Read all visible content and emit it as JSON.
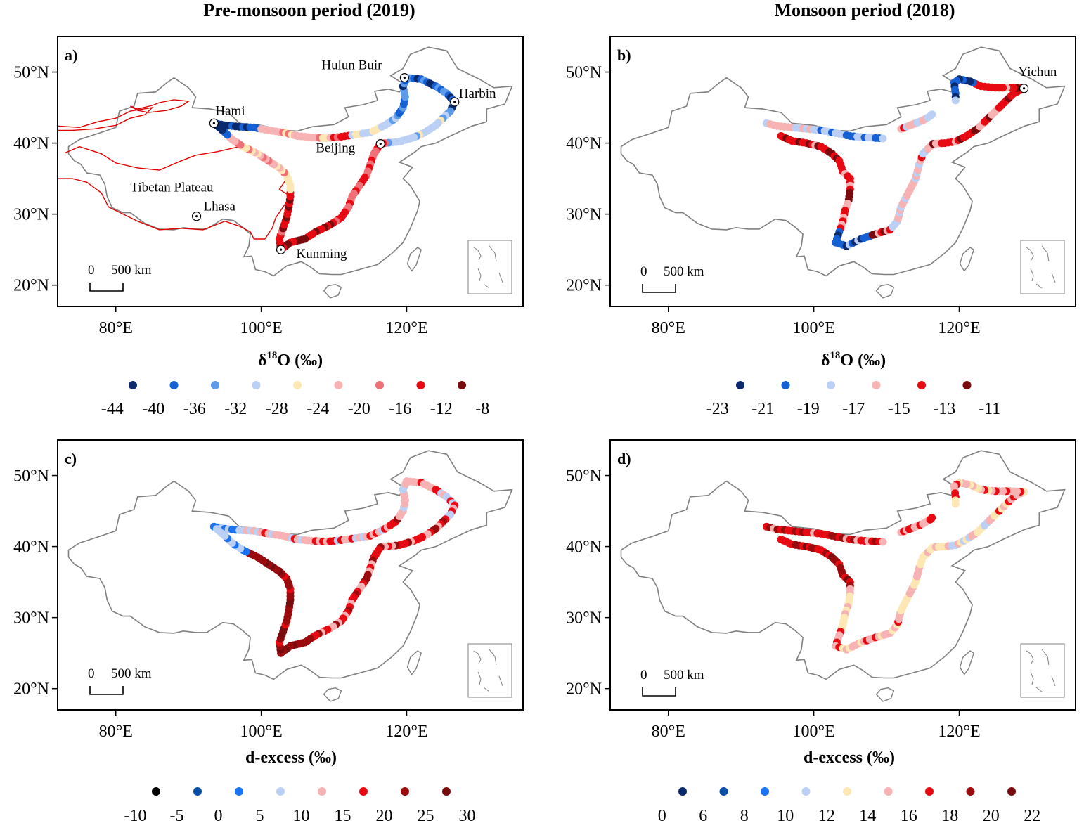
{
  "titles": {
    "left": "Pre-monsoon period (2019)",
    "right": "Monsoon period (2018)"
  },
  "axes": {
    "lat_labels": [
      "50°N",
      "40°N",
      "30°N",
      "20°N"
    ],
    "lat_values": [
      50,
      40,
      30,
      20
    ],
    "lon_labels": [
      "80°E",
      "100°E",
      "120°E"
    ],
    "lon_values": [
      80,
      100,
      120
    ],
    "lon_range": [
      72,
      136
    ],
    "lat_range": [
      17,
      55
    ]
  },
  "scale_bar": {
    "zero": "0",
    "distance": "500 km"
  },
  "panels": [
    {
      "letter": "a)",
      "variable": "δ18O",
      "locations": [
        {
          "name": "Hulun Buir",
          "lon": 119.7,
          "lat": 49.2
        },
        {
          "name": "Harbin",
          "lon": 126.6,
          "lat": 45.8
        },
        {
          "name": "Hami",
          "lon": 93.5,
          "lat": 42.8
        },
        {
          "name": "Beijing",
          "lon": 116.4,
          "lat": 39.9
        },
        {
          "name": "Lhasa",
          "lon": 91.1,
          "lat": 29.7
        },
        {
          "name": "Kunming",
          "lon": 102.7,
          "lat": 25.0
        }
      ],
      "region_label": "Tibetan Plateau"
    },
    {
      "letter": "b)",
      "variable": "δ18O",
      "locations": [
        {
          "name": "Yichun",
          "lon": 128.9,
          "lat": 47.7
        }
      ]
    },
    {
      "letter": "c)",
      "variable": "d-excess",
      "locations": []
    },
    {
      "letter": "d)",
      "variable": "d-excess",
      "locations": []
    }
  ],
  "legends": [
    {
      "id": "a",
      "title_main": "δ",
      "title_sup": "18",
      "title_rest": "O (‰)",
      "colors": [
        "#0b2a6e",
        "#1560d4",
        "#5e9cea",
        "#bcd0f5",
        "#fde7b4",
        "#f7b2b4",
        "#ef7076",
        "#e80a13",
        "#780b0e"
      ],
      "ticks": [
        "-44",
        "-40",
        "-36",
        "-32",
        "-28",
        "-24",
        "-20",
        "-16",
        "-12",
        "-8"
      ]
    },
    {
      "id": "b",
      "title_main": "δ",
      "title_sup": "18",
      "title_rest": "O (‰)",
      "colors": [
        "#0b2a6e",
        "#1560d4",
        "#bcd0f5",
        "#f7b2b4",
        "#e80a13",
        "#780b0e"
      ],
      "ticks": [
        "-23",
        "-21",
        "-19",
        "-17",
        "-15",
        "-13",
        "-11"
      ]
    },
    {
      "id": "c",
      "title_main": "d-excess (‰)",
      "colors": [
        "#000000",
        "#0b4ea6",
        "#1a73f0",
        "#bcd0f5",
        "#f7b2b4",
        "#e80a13",
        "#9a0b0e",
        "#780b0e"
      ],
      "ticks": [
        "-10",
        "-5",
        "0",
        "5",
        "10",
        "15",
        "20",
        "25",
        "30"
      ]
    },
    {
      "id": "d",
      "title_main": "d-excess (‰)",
      "colors": [
        "#0b2a6e",
        "#0b4ea6",
        "#1a73f0",
        "#bcd0f5",
        "#fde7b4",
        "#f7b2b4",
        "#e80a13",
        "#9a0b0e",
        "#780b0e"
      ],
      "ticks": [
        "0",
        "6",
        "8",
        "10",
        "12",
        "14",
        "16",
        "18",
        "20",
        "22"
      ]
    }
  ],
  "colors": {
    "outline": "#808080",
    "plateau": "#e00000",
    "frame": "#000000"
  }
}
